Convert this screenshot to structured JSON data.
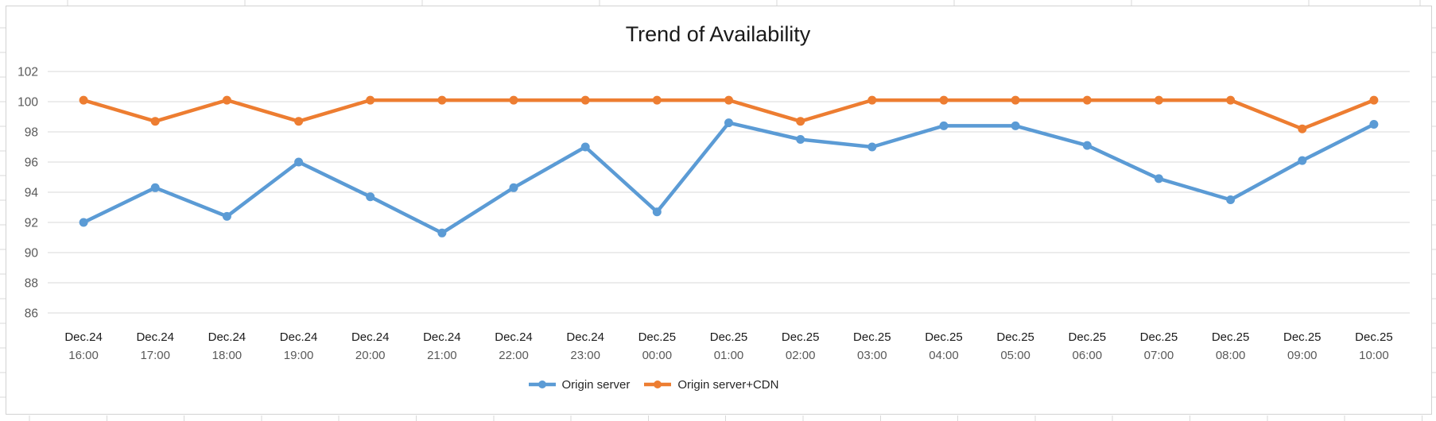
{
  "chart_data": {
    "type": "line",
    "title": "Trend of Availability",
    "xlabel": "",
    "ylabel": "",
    "ylim": [
      86,
      102
    ],
    "yticks": [
      86,
      88,
      90,
      92,
      94,
      96,
      98,
      100,
      102
    ],
    "grid": "horizontal",
    "legend_position": "bottom",
    "categories": [
      {
        "date": "Dec.24",
        "time": "16:00"
      },
      {
        "date": "Dec.24",
        "time": "17:00"
      },
      {
        "date": "Dec.24",
        "time": "18:00"
      },
      {
        "date": "Dec.24",
        "time": "19:00"
      },
      {
        "date": "Dec.24",
        "time": "20:00"
      },
      {
        "date": "Dec.24",
        "time": "21:00"
      },
      {
        "date": "Dec.24",
        "time": "22:00"
      },
      {
        "date": "Dec.24",
        "time": "23:00"
      },
      {
        "date": "Dec.25",
        "time": "00:00"
      },
      {
        "date": "Dec.25",
        "time": "01:00"
      },
      {
        "date": "Dec.25",
        "time": "02:00"
      },
      {
        "date": "Dec.25",
        "time": "03:00"
      },
      {
        "date": "Dec.25",
        "time": "04:00"
      },
      {
        "date": "Dec.25",
        "time": "05:00"
      },
      {
        "date": "Dec.25",
        "time": "06:00"
      },
      {
        "date": "Dec.25",
        "time": "07:00"
      },
      {
        "date": "Dec.25",
        "time": "08:00"
      },
      {
        "date": "Dec.25",
        "time": "09:00"
      },
      {
        "date": "Dec.25",
        "time": "10:00"
      }
    ],
    "series": [
      {
        "name": "Origin server",
        "color": "#5B9BD5",
        "values": [
          92.0,
          94.3,
          92.4,
          96.0,
          93.7,
          91.3,
          94.3,
          97.0,
          92.7,
          98.6,
          97.5,
          97.0,
          98.4,
          98.4,
          97.1,
          94.9,
          93.5,
          96.1,
          98.5
        ]
      },
      {
        "name": "Origin server+CDN",
        "color": "#ED7D31",
        "values": [
          100.1,
          98.7,
          100.1,
          98.7,
          100.1,
          100.1,
          100.1,
          100.1,
          100.1,
          100.1,
          98.7,
          100.1,
          100.1,
          100.1,
          100.1,
          100.1,
          100.1,
          98.2,
          100.1
        ]
      }
    ]
  },
  "colors": {
    "gridline": "#d9d9d9",
    "frame_border": "#d2d2d2",
    "y_tick_label": "#595959",
    "x_date_label": "#1a1a1a",
    "x_time_label": "#595959",
    "title_text": "#1a1a1a",
    "legend_text": "#262626"
  }
}
